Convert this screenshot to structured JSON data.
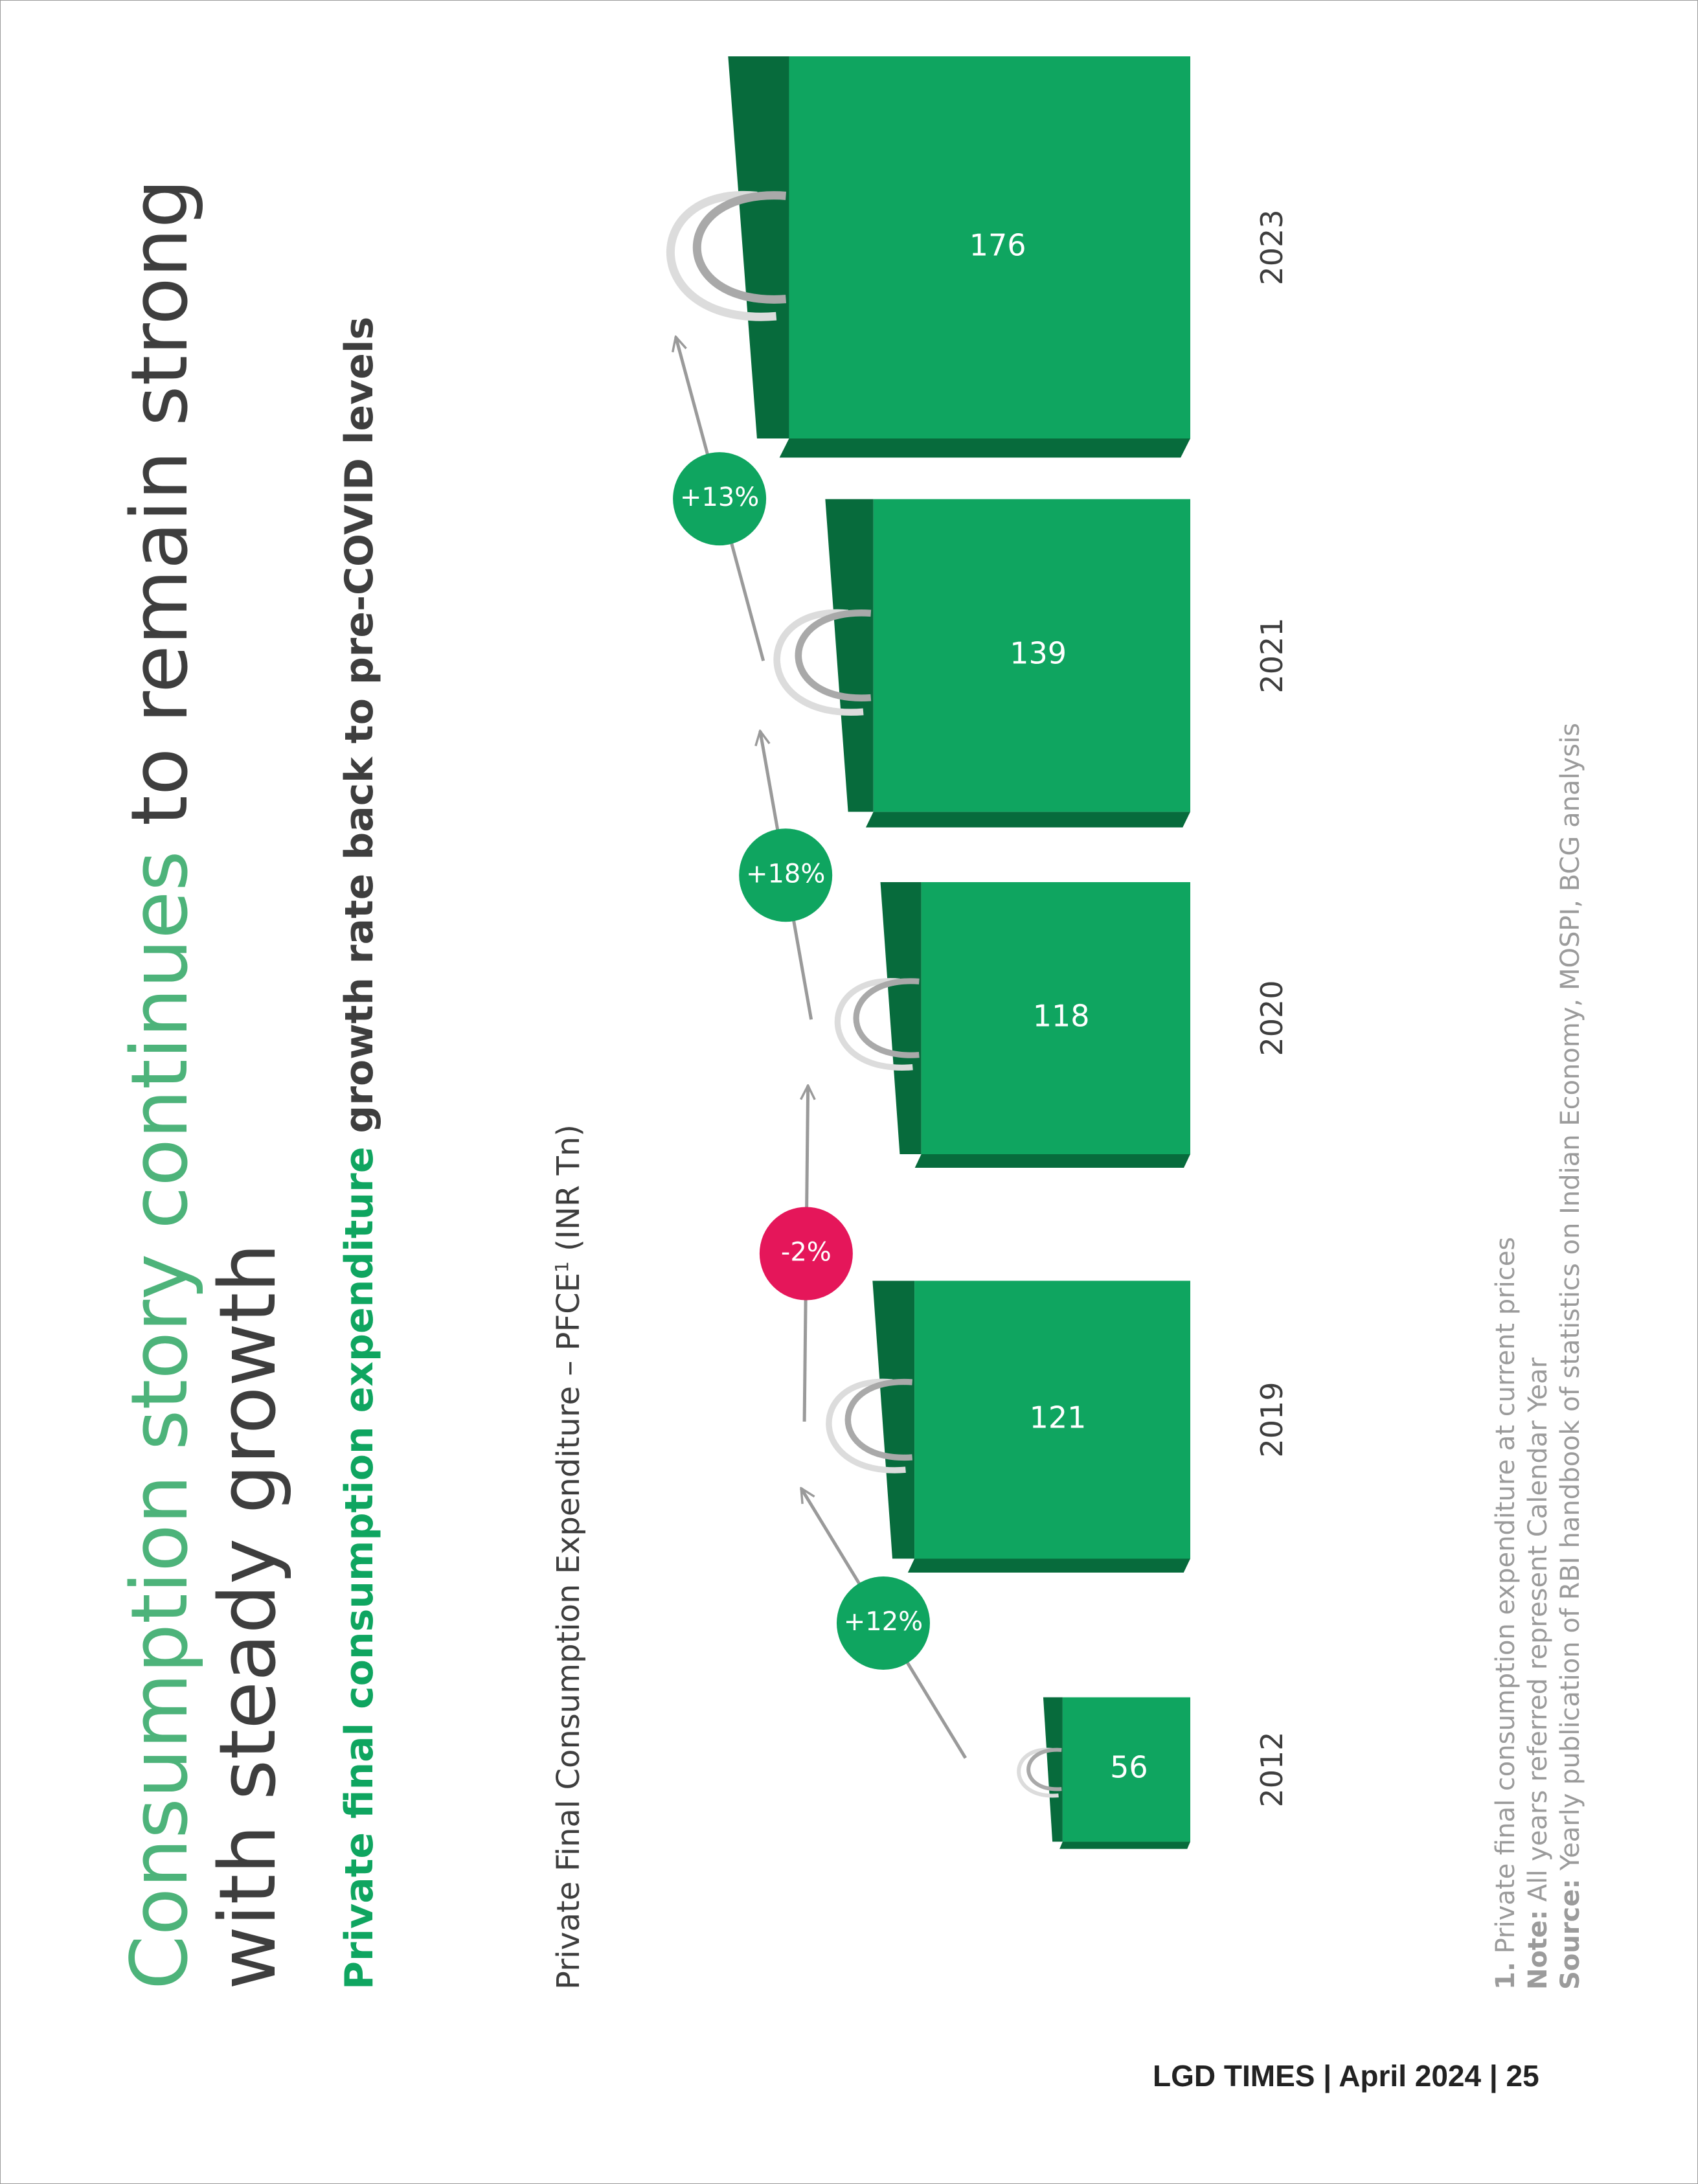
{
  "title": {
    "part1_highlight": "Consumption story continues",
    "part2": "to remain strong with steady growth"
  },
  "subtitle": {
    "highlight": "Private final consumption expenditure",
    "rest": "growth rate back to pre-COVID levels"
  },
  "chart_title": {
    "text": "Private Final Consumption Expenditure – PFCE",
    "superscript": "1",
    "unit": "(INR Tn)"
  },
  "colors": {
    "green": "#0fa560",
    "green_dark": "#076b3c",
    "red": "#e5165a",
    "text": "#3e3e3e",
    "muted": "#9b9b9b"
  },
  "chart_data": {
    "type": "bar",
    "categories": [
      "2012",
      "2019",
      "2020",
      "2021",
      "2023"
    ],
    "values": [
      56,
      121,
      118,
      139,
      176
    ],
    "value_labels": [
      "56",
      "121",
      "118",
      "139",
      "176"
    ],
    "unit": "INR Tn",
    "growth": [
      {
        "from": "2012",
        "to": "2019",
        "label": "+12%",
        "color": "#0fa560"
      },
      {
        "from": "2019",
        "to": "2020",
        "label": "-2%",
        "color": "#e5165a"
      },
      {
        "from": "2020",
        "to": "2021",
        "label": "+18%",
        "color": "#0fa560"
      },
      {
        "from": "2021",
        "to": "2023",
        "label": "+13%",
        "color": "#0fa560"
      }
    ]
  },
  "footnotes": {
    "note1_marker": "1.",
    "note1": "Private final consumption expenditure at current prices",
    "note_label": "Note:",
    "note": "All years referred represent Calendar Year",
    "source_label": "Source:",
    "source": "Yearly publication of RBI handbook of statistics on Indian Economy, MOSPI, BCG analysis"
  },
  "footer": {
    "publication": "LGD TIMES",
    "date": "April 2024",
    "page": "25"
  }
}
